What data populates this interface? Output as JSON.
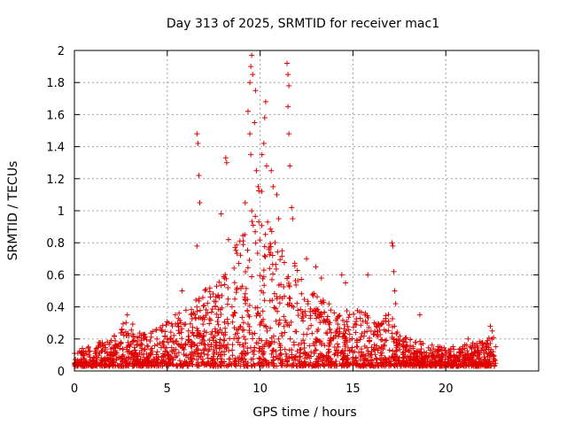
{
  "chart_data": {
    "type": "scatter",
    "title": "Day 313 of 2025, SRMTID for receiver mac1",
    "xlabel": "GPS time / hours",
    "ylabel": "SRMTID / TECUs",
    "xlim": [
      0,
      25
    ],
    "ylim": [
      0,
      2
    ],
    "xticks": [
      0,
      5,
      10,
      15,
      20
    ],
    "yticks": [
      0,
      0.2,
      0.4,
      0.6,
      0.8,
      1,
      1.2,
      1.4,
      1.6,
      1.8,
      2
    ],
    "ytick_labels": [
      "0",
      "0.2",
      "0.4",
      "0.6",
      "0.8",
      "1",
      "1.2",
      "1.4",
      "1.6",
      "1.8",
      "2"
    ],
    "grid": true,
    "marker": "plus",
    "color": "#e00000",
    "series": [
      {
        "name": "mac1",
        "envelope": {
          "x": [
            0,
            1,
            2,
            2.7,
            3,
            3.3,
            4,
            5,
            5.5,
            6,
            6.5,
            7,
            7.5,
            8,
            8.5,
            9,
            9.5,
            10,
            10.5,
            11,
            11.5,
            12,
            12.5,
            13,
            13.5,
            14,
            14.5,
            15,
            15.5,
            16,
            16.5,
            17,
            17.5,
            18,
            18.5,
            19,
            20,
            21,
            22,
            22.7
          ],
          "y": [
            0.07,
            0.1,
            0.12,
            0.2,
            0.25,
            0.15,
            0.15,
            0.2,
            0.25,
            0.25,
            0.3,
            0.35,
            0.35,
            0.4,
            0.5,
            0.6,
            0.7,
            0.8,
            0.7,
            0.6,
            0.5,
            0.45,
            0.35,
            0.32,
            0.3,
            0.25,
            0.25,
            0.25,
            0.25,
            0.22,
            0.2,
            0.25,
            0.15,
            0.15,
            0.12,
            0.1,
            0.08,
            0.1,
            0.12,
            0.15
          ]
        },
        "spikes": [
          {
            "x": 2.85,
            "y": 0.35
          },
          {
            "x": 5.8,
            "y": 0.5
          },
          {
            "x": 6.6,
            "y": 1.48
          },
          {
            "x": 6.65,
            "y": 1.42
          },
          {
            "x": 6.7,
            "y": 1.22
          },
          {
            "x": 6.75,
            "y": 1.05
          },
          {
            "x": 6.6,
            "y": 0.78
          },
          {
            "x": 7.9,
            "y": 0.98
          },
          {
            "x": 8.15,
            "y": 1.33
          },
          {
            "x": 8.2,
            "y": 1.3
          },
          {
            "x": 8.3,
            "y": 0.82
          },
          {
            "x": 9.2,
            "y": 1.05
          },
          {
            "x": 9.35,
            "y": 1.62
          },
          {
            "x": 9.45,
            "y": 1.8
          },
          {
            "x": 9.5,
            "y": 1.9
          },
          {
            "x": 9.55,
            "y": 1.97
          },
          {
            "x": 9.6,
            "y": 1.85
          },
          {
            "x": 9.45,
            "y": 1.48
          },
          {
            "x": 9.5,
            "y": 1.35
          },
          {
            "x": 9.7,
            "y": 1.55
          },
          {
            "x": 9.75,
            "y": 1.75
          },
          {
            "x": 9.8,
            "y": 1.25
          },
          {
            "x": 9.9,
            "y": 1.15
          },
          {
            "x": 10.1,
            "y": 1.35
          },
          {
            "x": 10.2,
            "y": 1.42
          },
          {
            "x": 10.25,
            "y": 1.58
          },
          {
            "x": 10.3,
            "y": 1.68
          },
          {
            "x": 10.35,
            "y": 1.28
          },
          {
            "x": 10.6,
            "y": 1.25
          },
          {
            "x": 10.7,
            "y": 1.15
          },
          {
            "x": 10.9,
            "y": 1.1
          },
          {
            "x": 11.0,
            "y": 0.95
          },
          {
            "x": 11.45,
            "y": 1.92
          },
          {
            "x": 11.5,
            "y": 1.85
          },
          {
            "x": 11.55,
            "y": 1.78
          },
          {
            "x": 11.5,
            "y": 1.65
          },
          {
            "x": 11.55,
            "y": 1.48
          },
          {
            "x": 11.6,
            "y": 1.28
          },
          {
            "x": 11.7,
            "y": 1.02
          },
          {
            "x": 11.75,
            "y": 0.95
          },
          {
            "x": 12.5,
            "y": 0.7
          },
          {
            "x": 13.0,
            "y": 0.65
          },
          {
            "x": 13.3,
            "y": 0.58
          },
          {
            "x": 14.4,
            "y": 0.6
          },
          {
            "x": 14.6,
            "y": 0.55
          },
          {
            "x": 15.8,
            "y": 0.6
          },
          {
            "x": 17.1,
            "y": 0.8
          },
          {
            "x": 17.15,
            "y": 0.78
          },
          {
            "x": 17.2,
            "y": 0.62
          },
          {
            "x": 17.25,
            "y": 0.5
          },
          {
            "x": 17.3,
            "y": 0.42
          },
          {
            "x": 18.6,
            "y": 0.35
          },
          {
            "x": 21.2,
            "y": 0.2
          },
          {
            "x": 22.4,
            "y": 0.28
          },
          {
            "x": 22.5,
            "y": 0.25
          }
        ]
      }
    ]
  }
}
